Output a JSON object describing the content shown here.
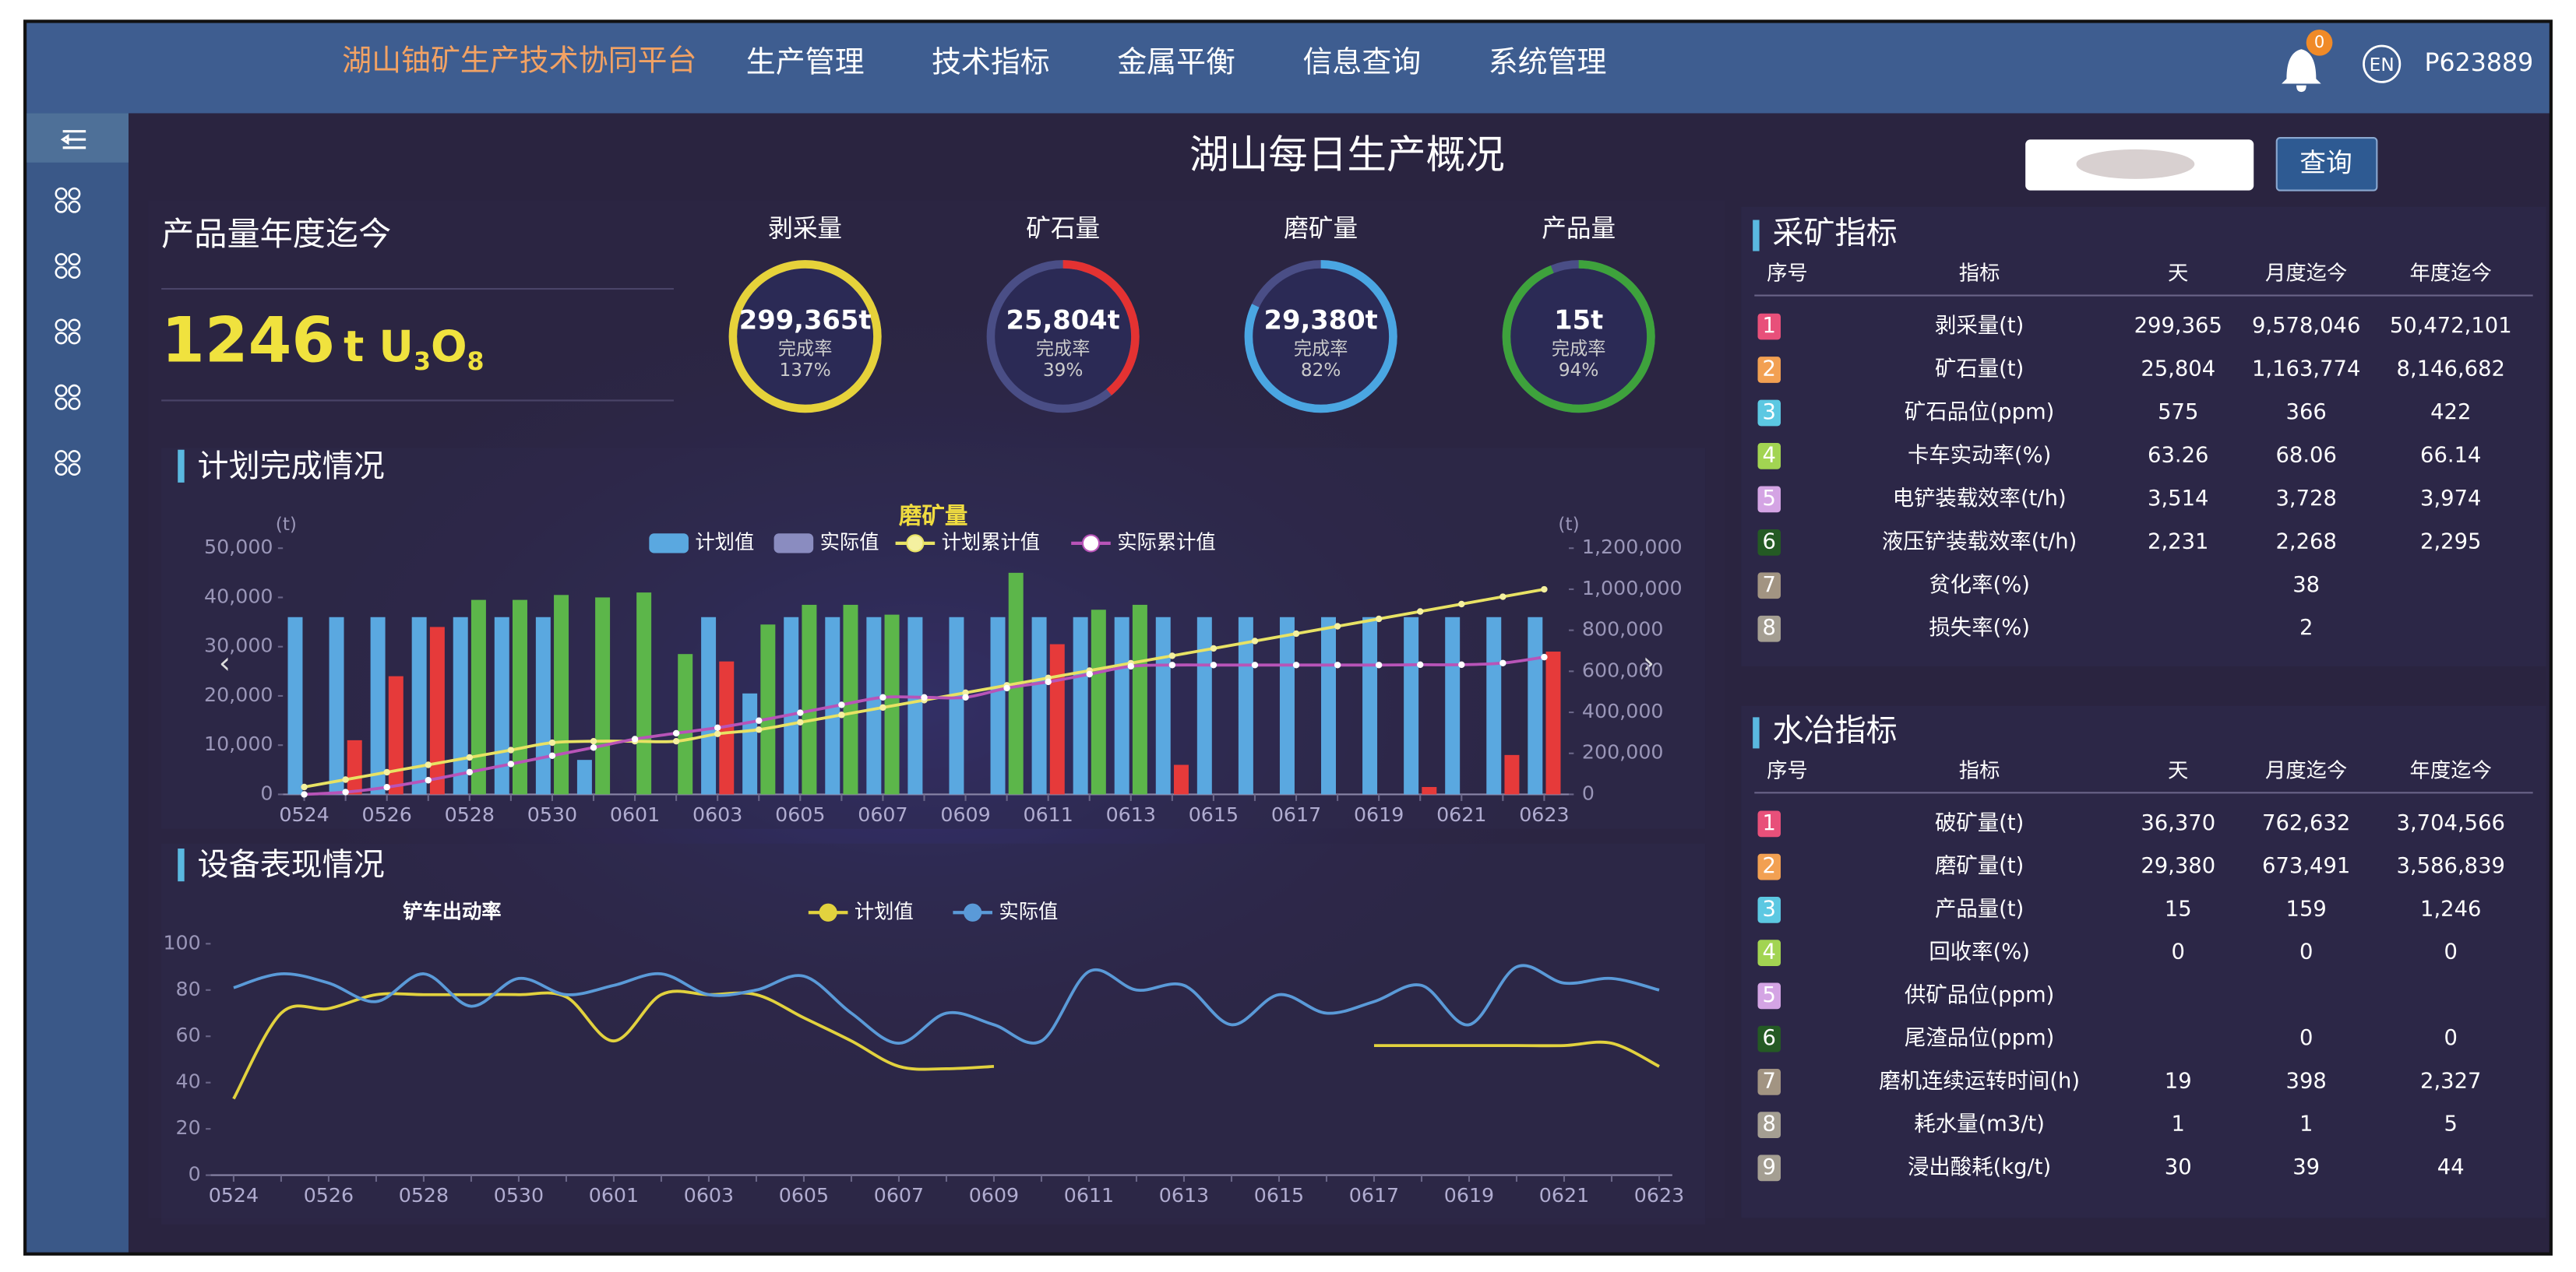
{
  "header": {
    "title": "湖山铀矿生产技术协同平台",
    "nav": [
      "生产管理",
      "技术指标",
      "金属平衡",
      "信息查询",
      "系统管理"
    ],
    "badge": "0",
    "lang": "EN",
    "user": "P623889"
  },
  "page_title": "湖山每日生产概况",
  "query_button": "查询",
  "ytd": {
    "title": "产品量年度迄今",
    "value": "1246",
    "unit": [
      "t U",
      "3",
      "O",
      "8"
    ]
  },
  "gauges": [
    {
      "name": "剥采量",
      "value": "299,365t",
      "rate_label": "完成率",
      "rate": {
        "value": 137,
        "label": "137%"
      },
      "color": "#e6d23a"
    },
    {
      "name": "矿石量",
      "value": "25,804t",
      "rate_label": "完成率",
      "rate": {
        "value": 39,
        "label": "39%"
      },
      "color": "#e43232"
    },
    {
      "name": "磨矿量",
      "value": "29,380t",
      "rate_label": "完成率",
      "rate": {
        "value": 82,
        "label": "82%"
      },
      "color": "#4aa6e2"
    },
    {
      "name": "产品量",
      "value": "15t",
      "rate_label": "完成率",
      "rate": {
        "value": 94,
        "label": "94%"
      },
      "color": "#3ea23c"
    }
  ],
  "badge_colors": [
    "#e8507a",
    "#f2a052",
    "#5cc8e2",
    "#a2d452",
    "#d4a4e4",
    "#245a24",
    "#a29482",
    "#a49e92",
    "#a49e92"
  ],
  "mining": {
    "title": "采矿指标",
    "columns": [
      "序号",
      "指标",
      "天",
      "月度迄今",
      "年度迄今"
    ],
    "rows": [
      [
        "1",
        "剥采量(t)",
        "299,365",
        "9,578,046",
        "50,472,101"
      ],
      [
        "2",
        "矿石量(t)",
        "25,804",
        "1,163,774",
        "8,146,682"
      ],
      [
        "3",
        "矿石品位(ppm)",
        "575",
        "366",
        "422"
      ],
      [
        "4",
        "卡车实动率(%)",
        "63.26",
        "68.06",
        "66.14"
      ],
      [
        "5",
        "电铲装载效率(t/h)",
        "3,514",
        "3,728",
        "3,974"
      ],
      [
        "6",
        "液压铲装载效率(t/h)",
        "2,231",
        "2,268",
        "2,295"
      ],
      [
        "7",
        "贫化率(%)",
        null,
        "38",
        null
      ],
      [
        "8",
        "损失率(%)",
        null,
        "2",
        null
      ]
    ]
  },
  "hydro": {
    "title": "水冶指标",
    "columns": [
      "序号",
      "指标",
      "天",
      "月度迄今",
      "年度迄今"
    ],
    "rows": [
      [
        "1",
        "破矿量(t)",
        "36,370",
        "762,632",
        "3,704,566"
      ],
      [
        "2",
        "磨矿量(t)",
        "29,380",
        "673,491",
        "3,586,839"
      ],
      [
        "3",
        "产品量(t)",
        "15",
        "159",
        "1,246"
      ],
      [
        "4",
        "回收率(%)",
        "0",
        "0",
        "0"
      ],
      [
        "5",
        "供矿品位(ppm)",
        null,
        null,
        null
      ],
      [
        "6",
        "尾渣品位(ppm)",
        null,
        "0",
        "0"
      ],
      [
        "7",
        "磨机连续运转时间(h)",
        "19",
        "398",
        "2,327"
      ],
      [
        "8",
        "耗水量(m3/t)",
        "1",
        "1",
        "5"
      ],
      [
        "9",
        "浸出酸耗(kg/t)",
        "30",
        "39",
        "44"
      ]
    ]
  },
  "plan_chart": {
    "panel_title": "计划完成情况",
    "type": "bar",
    "title": "磨矿量",
    "y_unit": "(t)",
    "y2_unit": "(t)",
    "categories": [
      "0524",
      null,
      "0526",
      null,
      "0528",
      null,
      "0530",
      null,
      "0601",
      null,
      "0603",
      null,
      "0605",
      null,
      "0607",
      null,
      "0609",
      null,
      "0611",
      null,
      "0613",
      null,
      "0615",
      null,
      "0617",
      null,
      "0619",
      null,
      "0621",
      null,
      "0623"
    ],
    "series": [
      {
        "name": "计划值",
        "color": "#5aa8e0",
        "values": [
          36000,
          36000,
          36000,
          36000,
          36000,
          36000,
          36000,
          7000,
          0,
          0,
          36000,
          20500,
          36000,
          36000,
          36000,
          36000,
          36000,
          36000,
          36000,
          36000,
          36000,
          36000,
          36000,
          36000,
          36000,
          36000,
          36000,
          36000,
          36000,
          36000,
          36000
        ]
      },
      {
        "name": "实际值",
        "color": "#8a8cc0",
        "met_color": "#5cb64a",
        "unmet_color": "#e63a3a",
        "values": [
          0,
          11000,
          24000,
          34000,
          39500,
          39500,
          40500,
          40000,
          41000,
          28500,
          27000,
          34500,
          38500,
          38500,
          36500,
          0,
          0,
          45000,
          30500,
          37500,
          38500,
          6000,
          0,
          0,
          0,
          0,
          0,
          1500,
          0,
          8000,
          29000
        ]
      },
      {
        "name": "计划累计值",
        "type": "line",
        "axis": "y2",
        "color": "#e8e264",
        "marker_color": "#f4f0a0",
        "values": [
          36000,
          72000,
          108000,
          144000,
          180000,
          216000,
          252000,
          259000,
          259000,
          259000,
          295000,
          315500,
          351500,
          387500,
          423500,
          459500,
          495500,
          531500,
          567500,
          603500,
          639500,
          675500,
          711500,
          747500,
          783500,
          819500,
          855500,
          891500,
          927500,
          963500,
          999500
        ]
      },
      {
        "name": "实际累计值",
        "type": "line",
        "axis": "y2",
        "color": "#b854b8",
        "marker_color": "#ffffff",
        "values": [
          0,
          11000,
          35000,
          69000,
          108500,
          148000,
          188500,
          228500,
          269500,
          298000,
          325000,
          359500,
          398000,
          436500,
          473000,
          473000,
          473000,
          518000,
          548500,
          586000,
          624500,
          630500,
          630500,
          630500,
          630500,
          630500,
          630500,
          632000,
          632000,
          640000,
          669000
        ]
      }
    ],
    "ylim": [
      0,
      50000
    ],
    "yticks": [
      0,
      {
        "value": 10000,
        "label": "10,000"
      },
      {
        "value": 20000,
        "label": "20,000"
      },
      {
        "value": 30000,
        "label": "30,000"
      },
      {
        "value": 40000,
        "label": "40,000"
      },
      {
        "value": 50000,
        "label": "50,000"
      }
    ],
    "y2lim": [
      0,
      1200000
    ],
    "y2ticks": [
      0,
      {
        "value": 200000,
        "label": "200,000"
      },
      {
        "value": 400000,
        "label": "400,000"
      },
      {
        "value": 600000,
        "label": "600,000"
      },
      {
        "value": 800000,
        "label": "800,000"
      },
      {
        "value": 1000000,
        "label": "1,000,000"
      },
      {
        "value": 1200000,
        "label": "1,200,000"
      }
    ]
  },
  "equip_chart": {
    "panel_title": "设备表现情况",
    "type": "line",
    "title": "铲车出动率",
    "categories": [
      "0524",
      null,
      "0526",
      null,
      "0528",
      null,
      "0530",
      null,
      "0601",
      null,
      "0603",
      null,
      "0605",
      null,
      "0607",
      null,
      "0609",
      null,
      "0611",
      null,
      "0613",
      null,
      "0615",
      null,
      "0617",
      null,
      "0619",
      null,
      "0621",
      null,
      "0623"
    ],
    "series": [
      {
        "name": "计划值",
        "color": "#e2d23e",
        "values": [
          33,
          70,
          72,
          78,
          78,
          78,
          78,
          77,
          58,
          78,
          78,
          78,
          68,
          58,
          47,
          46,
          47,
          null,
          null,
          null,
          null,
          null,
          null,
          null,
          56,
          56,
          56,
          56,
          56,
          57,
          47
        ]
      },
      {
        "name": "实际值",
        "color": "#5a9ad8",
        "values": [
          81,
          87,
          83,
          75,
          87,
          73,
          85,
          78,
          82,
          87,
          78,
          80,
          86,
          70,
          57,
          70,
          65,
          58,
          88,
          80,
          82,
          65,
          78,
          70,
          75,
          82,
          65,
          90,
          83,
          85,
          80
        ]
      }
    ],
    "ylim": [
      0,
      100
    ],
    "yticks": [
      0,
      20,
      40,
      60,
      80,
      100
    ]
  }
}
